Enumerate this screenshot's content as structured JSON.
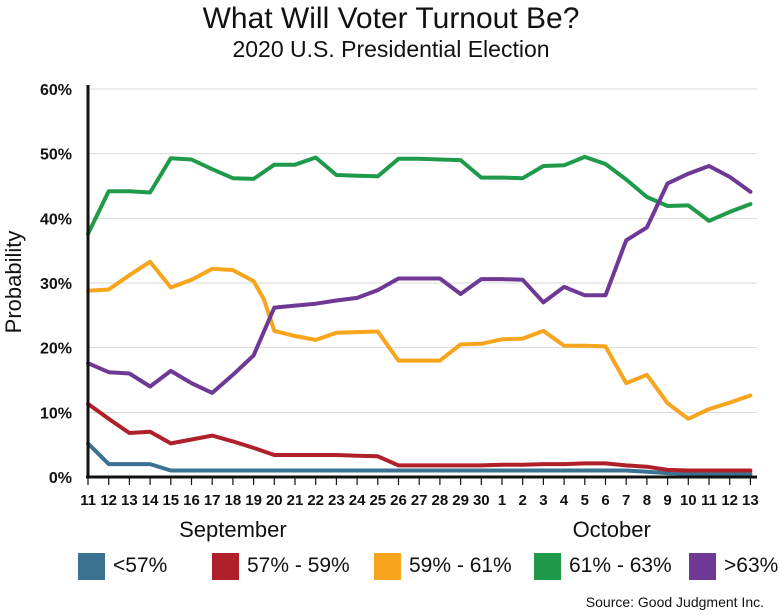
{
  "chart_data": {
    "type": "line",
    "title": "What Will Voter Turnout Be?",
    "subtitle": "2020 U.S. Presidential Election",
    "ylabel": "Probability",
    "ylim": [
      0,
      60
    ],
    "yticks": [
      0,
      10,
      20,
      30,
      40,
      50,
      60
    ],
    "ytick_labels": [
      "0%",
      "10%",
      "20%",
      "30%",
      "40%",
      "50%",
      "60%"
    ],
    "x_labels": [
      "11",
      "12",
      "13",
      "14",
      "15",
      "16",
      "17",
      "18",
      "19",
      "20",
      "21",
      "22",
      "23",
      "24",
      "25",
      "26",
      "27",
      "28",
      "29",
      "30",
      "1",
      "2",
      "3",
      "4",
      "5",
      "6",
      "7",
      "8",
      "9",
      "10",
      "11",
      "12",
      "13"
    ],
    "months": [
      {
        "label": "September",
        "center_index": 7
      },
      {
        "label": "October",
        "center_index": 25.3
      }
    ],
    "grid": "horizontal",
    "legend_position": "bottom",
    "series": [
      {
        "name": "<57%",
        "color": "#3b7191",
        "points": [
          [
            0,
            5.2
          ],
          [
            1,
            2
          ],
          [
            2,
            2
          ],
          [
            3,
            2
          ],
          [
            4,
            1
          ],
          [
            5,
            1
          ],
          [
            6,
            1
          ],
          [
            7,
            1
          ],
          [
            8,
            1
          ],
          [
            9,
            1
          ],
          [
            10,
            1
          ],
          [
            11,
            1
          ],
          [
            12,
            1
          ],
          [
            13,
            1
          ],
          [
            14,
            1
          ],
          [
            15,
            1
          ],
          [
            16,
            1
          ],
          [
            17,
            1
          ],
          [
            18,
            1
          ],
          [
            19,
            1
          ],
          [
            20,
            1
          ],
          [
            21,
            1
          ],
          [
            22,
            1
          ],
          [
            23,
            1
          ],
          [
            24,
            1
          ],
          [
            25,
            1
          ],
          [
            26,
            1
          ],
          [
            27,
            0.8
          ],
          [
            28,
            0.6
          ],
          [
            29,
            0.5
          ],
          [
            30,
            0.5
          ],
          [
            31,
            0.5
          ],
          [
            32,
            0.5
          ]
        ]
      },
      {
        "name": "57% - 59%",
        "color": "#b0202a",
        "points": [
          [
            0,
            11.3
          ],
          [
            1,
            9
          ],
          [
            2,
            6.8
          ],
          [
            3,
            7
          ],
          [
            4,
            5.2
          ],
          [
            5,
            5.8
          ],
          [
            6,
            6.4
          ],
          [
            7,
            5.5
          ],
          [
            8,
            4.5
          ],
          [
            9,
            3.4
          ],
          [
            10,
            3.4
          ],
          [
            11,
            3.4
          ],
          [
            12,
            3.4
          ],
          [
            13,
            3.3
          ],
          [
            14,
            3.2
          ],
          [
            15,
            1.8
          ],
          [
            16,
            1.8
          ],
          [
            17,
            1.8
          ],
          [
            18,
            1.8
          ],
          [
            19,
            1.8
          ],
          [
            20,
            1.9
          ],
          [
            21,
            1.9
          ],
          [
            22,
            2
          ],
          [
            23,
            2
          ],
          [
            24,
            2.1
          ],
          [
            25,
            2.1
          ],
          [
            26,
            1.8
          ],
          [
            27,
            1.6
          ],
          [
            28,
            1.1
          ],
          [
            29,
            1
          ],
          [
            30,
            1
          ],
          [
            31,
            1
          ],
          [
            32,
            1
          ]
        ]
      },
      {
        "name": "59% - 61%",
        "color": "#f7a51c",
        "points": [
          [
            0,
            28.8
          ],
          [
            1,
            29
          ],
          [
            2,
            31.2
          ],
          [
            3,
            33.3
          ],
          [
            4,
            29.3
          ],
          [
            5,
            30.5
          ],
          [
            6,
            32.2
          ],
          [
            7,
            32
          ],
          [
            8,
            30.3
          ],
          [
            8.5,
            27.5
          ],
          [
            9,
            22.6
          ],
          [
            10,
            21.8
          ],
          [
            11,
            21.2
          ],
          [
            12,
            22.3
          ],
          [
            13,
            22.4
          ],
          [
            14,
            22.5
          ],
          [
            15,
            18
          ],
          [
            16,
            18
          ],
          [
            17,
            18
          ],
          [
            18,
            20.5
          ],
          [
            19,
            20.6
          ],
          [
            20,
            21.3
          ],
          [
            21,
            21.4
          ],
          [
            22,
            22.6
          ],
          [
            23,
            20.3
          ],
          [
            24,
            20.3
          ],
          [
            25,
            20.2
          ],
          [
            26,
            14.5
          ],
          [
            27,
            15.8
          ],
          [
            28,
            11.4
          ],
          [
            29,
            9
          ],
          [
            30,
            10.5
          ],
          [
            31,
            11.5
          ],
          [
            32,
            12.6
          ]
        ]
      },
      {
        "name": "61% - 63%",
        "color": "#1e9a4a",
        "points": [
          [
            0,
            37.6
          ],
          [
            1,
            44.2
          ],
          [
            2,
            44.2
          ],
          [
            3,
            44
          ],
          [
            4,
            49.3
          ],
          [
            5,
            49.1
          ],
          [
            6,
            47.6
          ],
          [
            7,
            46.2
          ],
          [
            8,
            46.1
          ],
          [
            9,
            48.3
          ],
          [
            10,
            48.3
          ],
          [
            11,
            49.4
          ],
          [
            12,
            46.7
          ],
          [
            13,
            46.6
          ],
          [
            14,
            46.5
          ],
          [
            15,
            49.2
          ],
          [
            16,
            49.2
          ],
          [
            17,
            49.1
          ],
          [
            18,
            49
          ],
          [
            19,
            46.3
          ],
          [
            20,
            46.3
          ],
          [
            21,
            46.2
          ],
          [
            22,
            48.1
          ],
          [
            23,
            48.2
          ],
          [
            24,
            49.5
          ],
          [
            25,
            48.4
          ],
          [
            26,
            46
          ],
          [
            27,
            43.3
          ],
          [
            28,
            41.9
          ],
          [
            29,
            42
          ],
          [
            30,
            39.6
          ],
          [
            31,
            41
          ],
          [
            32,
            42.2
          ]
        ]
      },
      {
        "name": ">63%",
        "color": "#6e3895",
        "points": [
          [
            0,
            17.6
          ],
          [
            1,
            16.2
          ],
          [
            2,
            16
          ],
          [
            3,
            14
          ],
          [
            4,
            16.4
          ],
          [
            5,
            14.5
          ],
          [
            6,
            13
          ],
          [
            7,
            15.8
          ],
          [
            8,
            18.8
          ],
          [
            9,
            26.2
          ],
          [
            10,
            26.5
          ],
          [
            11,
            26.8
          ],
          [
            12,
            27.3
          ],
          [
            13,
            27.7
          ],
          [
            14,
            28.9
          ],
          [
            15,
            30.7
          ],
          [
            16,
            30.7
          ],
          [
            17,
            30.7
          ],
          [
            18,
            28.3
          ],
          [
            19,
            30.6
          ],
          [
            20,
            30.6
          ],
          [
            21,
            30.5
          ],
          [
            22,
            27
          ],
          [
            23,
            29.4
          ],
          [
            24,
            28.1
          ],
          [
            25,
            28.1
          ],
          [
            26,
            36.6
          ],
          [
            27,
            38.6
          ],
          [
            28,
            45.4
          ],
          [
            29,
            46.9
          ],
          [
            30,
            48.1
          ],
          [
            31,
            46.4
          ],
          [
            32,
            44.1
          ]
        ]
      }
    ],
    "source": "Source: Good Judgment Inc."
  }
}
